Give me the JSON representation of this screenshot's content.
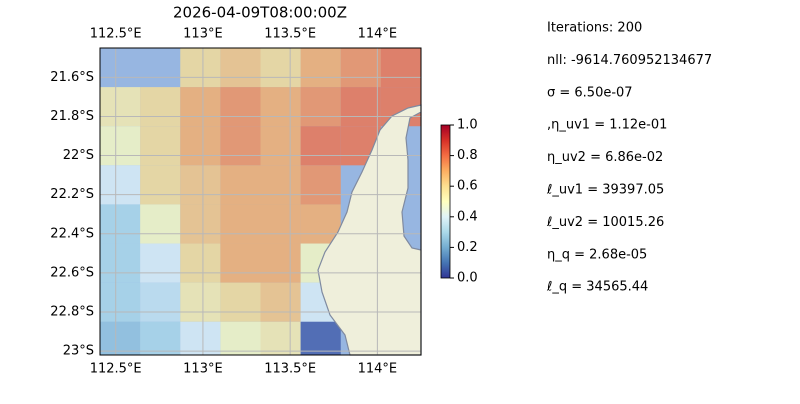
{
  "chart_data": {
    "type": "heatmap",
    "title": "2026-04-09T08:00:00Z",
    "xlim": [
      112.41,
      114.25
    ],
    "ylim": [
      -21.45,
      -23.02
    ],
    "xticks": [
      {
        "value": 112.5,
        "label": "112.5°E"
      },
      {
        "value": 113,
        "label": "113°E"
      },
      {
        "value": 113.5,
        "label": "113.5°E"
      },
      {
        "value": 114,
        "label": "114°E"
      }
    ],
    "yticks": [
      {
        "value": -21.6,
        "label": "21.6°S"
      },
      {
        "value": -21.8,
        "label": "21.8°S"
      },
      {
        "value": -22,
        "label": "22°S"
      },
      {
        "value": -22.2,
        "label": "22.2°S"
      },
      {
        "value": -22.4,
        "label": "22.4°S"
      },
      {
        "value": -22.6,
        "label": "22.6°S"
      },
      {
        "value": -22.8,
        "label": "22.8°S"
      },
      {
        "value": -23,
        "label": "23°S"
      }
    ],
    "grid": true,
    "xbins": [
      112.41,
      112.64,
      112.87,
      113.1,
      113.33,
      113.56,
      113.79,
      114.02,
      114.25
    ],
    "ybins": [
      -21.45,
      -21.65,
      -21.85,
      -22.05,
      -22.25,
      -22.45,
      -22.65,
      -22.85,
      -23.02
    ],
    "z": [
      [
        null,
        null,
        0.6,
        0.65,
        0.6,
        0.7,
        0.75,
        0.8
      ],
      [
        0.55,
        0.6,
        0.7,
        0.75,
        0.7,
        0.75,
        0.8,
        0.8
      ],
      [
        0.5,
        0.6,
        0.7,
        0.75,
        0.7,
        0.8,
        0.8,
        null
      ],
      [
        0.4,
        0.6,
        0.65,
        0.7,
        0.7,
        0.75,
        null,
        null
      ],
      [
        0.3,
        0.5,
        0.65,
        0.7,
        0.7,
        0.7,
        null,
        null
      ],
      [
        0.3,
        0.4,
        0.6,
        0.7,
        0.7,
        0.5,
        null,
        null
      ],
      [
        0.3,
        0.35,
        0.55,
        0.6,
        0.65,
        0.4,
        null,
        null
      ],
      [
        0.25,
        0.3,
        0.4,
        0.5,
        0.55,
        0.05,
        null,
        null
      ]
    ],
    "colormap": "RdYlBu_r",
    "clim": [
      0,
      1
    ],
    "colorbar_ticks": [
      {
        "value": 0,
        "label": "0.0"
      },
      0.2,
      0.4,
      0.6,
      0.8,
      {
        "value": 1,
        "label": "1.0"
      }
    ],
    "annotations": [
      "Iterations: 200",
      "nll: -9614.760952134677",
      "σ = 6.50e-07",
      ",η_uv1 = 1.12e-01",
      "η_uv2 = 6.86e-02",
      "ℓ_uv1 = 39397.05",
      "ℓ_uv2 = 10015.26",
      "η_q = 2.68e-05",
      "ℓ_q = 34565.44"
    ]
  }
}
